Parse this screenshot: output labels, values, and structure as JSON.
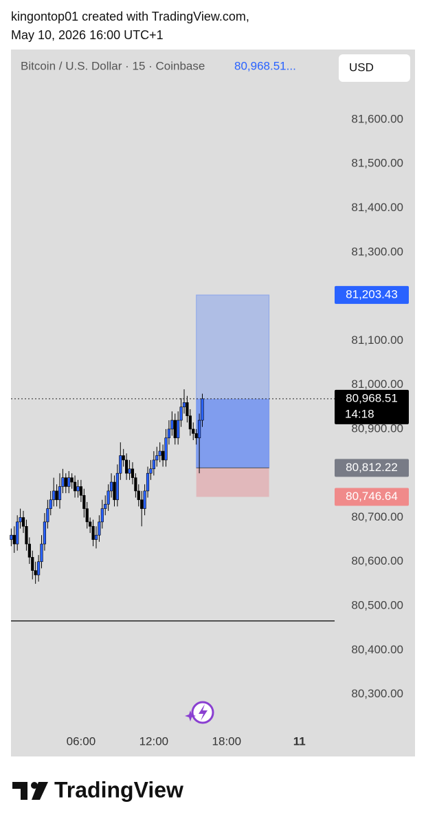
{
  "header": {
    "line1": "kingontop01 created with TradingView.com,",
    "line2": "May 10, 2026 16:00 UTC+1"
  },
  "chart_data": {
    "type": "candlestick",
    "title": "Bitcoin / U.S. Dollar · 15 · Coinbase",
    "title_price": "80,968.51...",
    "currency": "USD",
    "up_color": "#2962ff",
    "down_color": "#000000",
    "ylim": [
      80220,
      81740
    ],
    "xlim": [
      0.23,
      26.9
    ],
    "yticks": [
      {
        "value": 81600,
        "label": "81,600.00"
      },
      {
        "value": 81500,
        "label": "81,500.00"
      },
      {
        "value": 81400,
        "label": "81,400.00"
      },
      {
        "value": 81300,
        "label": "81,300.00"
      },
      {
        "value": 81100,
        "label": "81,100.00"
      },
      {
        "value": 81000,
        "label": "81,000.00"
      },
      {
        "value": 80900,
        "label": "80,900.00"
      },
      {
        "value": 80700,
        "label": "80,700.00"
      },
      {
        "value": 80600,
        "label": "80,600.00"
      },
      {
        "value": 80500,
        "label": "80,500.00"
      },
      {
        "value": 80400,
        "label": "80,400.00"
      },
      {
        "value": 80300,
        "label": "80,300.00"
      }
    ],
    "xticks": [
      {
        "value": 6,
        "label": "06:00"
      },
      {
        "value": 12,
        "label": "12:00"
      },
      {
        "value": 18,
        "label": "18:00"
      },
      {
        "value": 24,
        "label": "11"
      }
    ],
    "x": [
      0.25,
      0.5,
      0.75,
      1,
      1.25,
      1.5,
      1.75,
      2,
      2.25,
      2.5,
      2.75,
      3,
      3.25,
      3.5,
      3.75,
      4,
      4.25,
      4.5,
      4.75,
      5,
      5.25,
      5.5,
      5.75,
      6,
      6.25,
      6.5,
      6.75,
      7,
      7.25,
      7.5,
      7.75,
      8,
      8.25,
      8.5,
      8.75,
      9,
      9.25,
      9.5,
      9.75,
      10,
      10.25,
      10.5,
      10.75,
      11,
      11.25,
      11.5,
      11.75,
      12,
      12.25,
      12.5,
      12.75,
      13,
      13.25,
      13.5,
      13.75,
      14,
      14.25,
      14.5,
      14.75,
      15,
      15.25,
      15.5,
      15.75,
      16
    ],
    "open": [
      80650,
      80660,
      80640,
      80690,
      80700,
      80680,
      80640,
      80610,
      80580,
      80570,
      80600,
      80640,
      80690,
      80720,
      80740,
      80760,
      80740,
      80770,
      80790,
      80770,
      80790,
      80780,
      80760,
      80770,
      80750,
      80720,
      80690,
      80680,
      80650,
      80660,
      80690,
      80720,
      80730,
      80760,
      80780,
      80740,
      80800,
      80840,
      80830,
      80800,
      80810,
      80790,
      80760,
      80740,
      80720,
      80760,
      80800,
      80810,
      80830,
      80840,
      80850,
      80830,
      80880,
      80900,
      80920,
      80880,
      80920,
      80950,
      80960,
      80930,
      80900,
      80890,
      80880,
      80920
    ],
    "high": [
      80675,
      80680,
      80705,
      80720,
      80715,
      80695,
      80655,
      80625,
      80600,
      80615,
      80660,
      80710,
      80740,
      80760,
      80790,
      80775,
      80800,
      80810,
      80800,
      80805,
      80800,
      80795,
      80785,
      80785,
      80765,
      80735,
      80700,
      80695,
      80680,
      80705,
      80740,
      80750,
      80775,
      80800,
      80795,
      80820,
      80870,
      80855,
      80845,
      80830,
      80825,
      80800,
      80775,
      80760,
      80775,
      80815,
      80830,
      80850,
      80860,
      80870,
      80865,
      80900,
      80920,
      80940,
      80935,
      80940,
      80970,
      80990,
      80975,
      80945,
      80915,
      80900,
      80935,
      80980
    ],
    "low": [
      80635,
      80620,
      80625,
      80675,
      80665,
      80625,
      80595,
      80560,
      80550,
      80555,
      80585,
      80625,
      80675,
      80705,
      80725,
      80725,
      80720,
      80755,
      80755,
      80755,
      80765,
      80745,
      80745,
      80735,
      80700,
      80675,
      80665,
      80635,
      80630,
      80645,
      80675,
      80705,
      80715,
      80745,
      80725,
      80725,
      80785,
      80815,
      80785,
      80785,
      80775,
      80745,
      80725,
      80680,
      80705,
      80745,
      80785,
      80795,
      80815,
      80825,
      80815,
      80815,
      80865,
      80885,
      80865,
      80865,
      80905,
      80935,
      80915,
      80885,
      80875,
      80865,
      80800,
      80905
    ],
    "close": [
      80660,
      80640,
      80690,
      80700,
      80680,
      80640,
      80610,
      80580,
      80570,
      80600,
      80640,
      80690,
      80720,
      80740,
      80760,
      80740,
      80770,
      80790,
      80770,
      80790,
      80780,
      80760,
      80770,
      80750,
      80720,
      80690,
      80680,
      80650,
      80660,
      80690,
      80720,
      80730,
      80760,
      80780,
      80740,
      80800,
      80840,
      80830,
      80800,
      80810,
      80790,
      80760,
      80740,
      80720,
      80760,
      80800,
      80810,
      80830,
      80840,
      80850,
      80830,
      80880,
      80900,
      80920,
      80880,
      80920,
      80950,
      80960,
      80930,
      80900,
      80890,
      80880,
      80920,
      80968.51
    ],
    "last_price": {
      "value": 80968.51,
      "label": "80,968.51"
    },
    "countdown": "14:18",
    "horizontal_line": 80466,
    "position": {
      "start": 15.5,
      "end": 21.5,
      "target": {
        "value": 81203.43,
        "label": "81,203.43"
      },
      "entry": {
        "value": 80812.22,
        "label": "80,812.22"
      },
      "stop": {
        "value": 80746.64,
        "label": "80,746.64"
      }
    }
  },
  "footer": {
    "logo": "TradingView"
  }
}
